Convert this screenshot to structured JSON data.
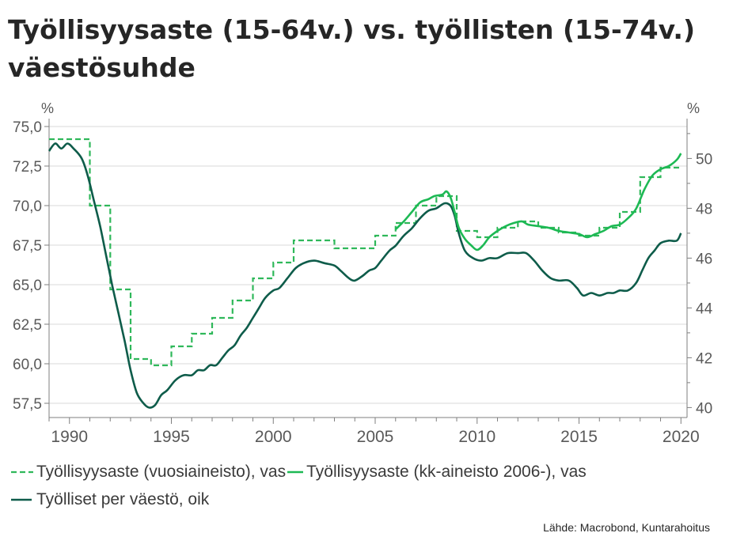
{
  "title": "Työllisyysaste (15-64v.) vs. työllisten (15-74v.) väestösuhde",
  "source": "Lähde: Macrobond, Kuntarahoitus",
  "colors": {
    "dashed": "#2fb85a",
    "green": "#1db954",
    "dark": "#0e5c4a",
    "grid": "#d9d9d9",
    "axis": "#7f7f7f"
  },
  "legend": [
    {
      "label": "Työllisyysaste (vuosiaineisto), vas",
      "style": "dashed"
    },
    {
      "label": "Työllisyysaste (kk-aineisto 2006-), vas",
      "style": "green"
    },
    {
      "label": "Työlliset per väestö, oik",
      "style": "dark"
    }
  ],
  "chart_data": {
    "type": "line",
    "x_range": [
      1989,
      2020.3
    ],
    "x_ticks": [
      1990,
      1995,
      2000,
      2005,
      2010,
      2015,
      2020
    ],
    "y_left": {
      "unit": "%",
      "range": [
        56.6,
        75.5
      ],
      "ticks": [
        57.5,
        60.0,
        62.5,
        65.0,
        67.5,
        70.0,
        72.5,
        75.0
      ],
      "tick_labels": [
        "57,5",
        "60,0",
        "62,5",
        "65,0",
        "67,5",
        "70,0",
        "72,5",
        "75,0"
      ]
    },
    "y_right": {
      "unit": "%",
      "range": [
        39.6,
        51.6
      ],
      "ticks": [
        40,
        42,
        44,
        46,
        48,
        50
      ],
      "tick_labels": [
        "40",
        "42",
        "44",
        "46",
        "48",
        "50"
      ]
    },
    "grid": true,
    "legend_position": "bottom",
    "series": [
      {
        "name": "Työllisyysaste (vuosiaineisto), vas",
        "axis": "left",
        "style": "dashed-step",
        "annual": [
          [
            1989,
            74.2
          ],
          [
            1990,
            74.2
          ],
          [
            1991,
            70.0
          ],
          [
            1992,
            64.7
          ],
          [
            1993,
            60.3
          ],
          [
            1994,
            59.9
          ],
          [
            1995,
            61.1
          ],
          [
            1996,
            61.9
          ],
          [
            1997,
            62.9
          ],
          [
            1998,
            64.0
          ],
          [
            1999,
            65.4
          ],
          [
            2000,
            66.4
          ],
          [
            2001,
            67.8
          ],
          [
            2002,
            67.8
          ],
          [
            2003,
            67.3
          ],
          [
            2004,
            67.3
          ],
          [
            2005,
            68.1
          ],
          [
            2006,
            68.9
          ],
          [
            2007,
            70.0
          ],
          [
            2008,
            70.6
          ],
          [
            2009,
            68.4
          ],
          [
            2010,
            68.0
          ],
          [
            2011,
            68.6
          ],
          [
            2012,
            69.0
          ],
          [
            2013,
            68.6
          ],
          [
            2014,
            68.3
          ],
          [
            2015,
            68.1
          ],
          [
            2016,
            68.6
          ],
          [
            2017,
            69.6
          ],
          [
            2018,
            71.8
          ],
          [
            2019,
            72.4
          ]
        ]
      },
      {
        "name": "Työllisyysaste (kk-aineisto 2006-), vas",
        "axis": "left",
        "style": "solid",
        "points": [
          [
            2006.0,
            68.5
          ],
          [
            2006.4,
            69.0
          ],
          [
            2006.8,
            69.6
          ],
          [
            2007.2,
            70.2
          ],
          [
            2007.6,
            70.4
          ],
          [
            2007.9,
            70.6
          ],
          [
            2008.3,
            70.7
          ],
          [
            2008.5,
            70.9
          ],
          [
            2008.7,
            70.5
          ],
          [
            2008.9,
            69.6
          ],
          [
            2009.1,
            68.6
          ],
          [
            2009.4,
            67.9
          ],
          [
            2009.7,
            67.5
          ],
          [
            2010.0,
            67.2
          ],
          [
            2010.3,
            67.5
          ],
          [
            2010.6,
            68.0
          ],
          [
            2011.0,
            68.4
          ],
          [
            2011.4,
            68.7
          ],
          [
            2011.8,
            68.9
          ],
          [
            2012.2,
            69.0
          ],
          [
            2012.5,
            68.8
          ],
          [
            2013.0,
            68.7
          ],
          [
            2013.5,
            68.6
          ],
          [
            2014.0,
            68.4
          ],
          [
            2014.5,
            68.3
          ],
          [
            2015.0,
            68.2
          ],
          [
            2015.4,
            68.0
          ],
          [
            2015.8,
            68.2
          ],
          [
            2016.2,
            68.4
          ],
          [
            2016.6,
            68.7
          ],
          [
            2017.0,
            68.8
          ],
          [
            2017.4,
            69.2
          ],
          [
            2017.8,
            69.8
          ],
          [
            2018.2,
            71.0
          ],
          [
            2018.6,
            71.9
          ],
          [
            2019.0,
            72.3
          ],
          [
            2019.4,
            72.5
          ],
          [
            2019.8,
            72.9
          ],
          [
            2020.0,
            73.3
          ]
        ]
      },
      {
        "name": "Työlliset per väestö, oik",
        "axis": "right",
        "style": "solid",
        "points": [
          [
            1989.0,
            50.3
          ],
          [
            1989.3,
            50.6
          ],
          [
            1989.6,
            50.4
          ],
          [
            1989.9,
            50.6
          ],
          [
            1990.2,
            50.4
          ],
          [
            1990.6,
            50.0
          ],
          [
            1990.9,
            49.3
          ],
          [
            1991.2,
            48.3
          ],
          [
            1991.5,
            47.3
          ],
          [
            1991.8,
            46.1
          ],
          [
            1992.1,
            44.9
          ],
          [
            1992.4,
            43.8
          ],
          [
            1992.7,
            42.7
          ],
          [
            1993.0,
            41.5
          ],
          [
            1993.3,
            40.6
          ],
          [
            1993.6,
            40.2
          ],
          [
            1993.9,
            40.0
          ],
          [
            1994.2,
            40.1
          ],
          [
            1994.5,
            40.5
          ],
          [
            1994.8,
            40.7
          ],
          [
            1995.2,
            41.1
          ],
          [
            1995.6,
            41.3
          ],
          [
            1996.0,
            41.3
          ],
          [
            1996.3,
            41.5
          ],
          [
            1996.6,
            41.5
          ],
          [
            1996.9,
            41.7
          ],
          [
            1997.2,
            41.7
          ],
          [
            1997.5,
            42.0
          ],
          [
            1997.8,
            42.3
          ],
          [
            1998.1,
            42.5
          ],
          [
            1998.4,
            42.9
          ],
          [
            1998.7,
            43.2
          ],
          [
            1999.0,
            43.6
          ],
          [
            1999.3,
            44.0
          ],
          [
            1999.6,
            44.4
          ],
          [
            2000.0,
            44.7
          ],
          [
            2000.3,
            44.8
          ],
          [
            2000.7,
            45.2
          ],
          [
            2001.1,
            45.6
          ],
          [
            2001.5,
            45.8
          ],
          [
            2002.0,
            45.9
          ],
          [
            2002.5,
            45.8
          ],
          [
            2003.0,
            45.7
          ],
          [
            2003.3,
            45.5
          ],
          [
            2003.7,
            45.2
          ],
          [
            2004.0,
            45.1
          ],
          [
            2004.4,
            45.3
          ],
          [
            2004.7,
            45.5
          ],
          [
            2005.0,
            45.6
          ],
          [
            2005.3,
            45.9
          ],
          [
            2005.7,
            46.3
          ],
          [
            2006.0,
            46.5
          ],
          [
            2006.4,
            46.9
          ],
          [
            2006.8,
            47.2
          ],
          [
            2007.2,
            47.6
          ],
          [
            2007.6,
            47.9
          ],
          [
            2008.0,
            48.0
          ],
          [
            2008.4,
            48.2
          ],
          [
            2008.7,
            48.1
          ],
          [
            2008.9,
            47.7
          ],
          [
            2009.1,
            47.0
          ],
          [
            2009.4,
            46.3
          ],
          [
            2009.8,
            46.0
          ],
          [
            2010.2,
            45.9
          ],
          [
            2010.6,
            46.0
          ],
          [
            2011.0,
            46.0
          ],
          [
            2011.5,
            46.2
          ],
          [
            2012.0,
            46.2
          ],
          [
            2012.4,
            46.2
          ],
          [
            2012.8,
            45.9
          ],
          [
            2013.2,
            45.5
          ],
          [
            2013.6,
            45.2
          ],
          [
            2014.0,
            45.1
          ],
          [
            2014.5,
            45.1
          ],
          [
            2014.9,
            44.8
          ],
          [
            2015.2,
            44.5
          ],
          [
            2015.6,
            44.6
          ],
          [
            2016.0,
            44.5
          ],
          [
            2016.4,
            44.6
          ],
          [
            2016.7,
            44.6
          ],
          [
            2017.0,
            44.7
          ],
          [
            2017.4,
            44.7
          ],
          [
            2017.8,
            45.0
          ],
          [
            2018.1,
            45.5
          ],
          [
            2018.4,
            46.0
          ],
          [
            2018.7,
            46.3
          ],
          [
            2019.0,
            46.6
          ],
          [
            2019.4,
            46.7
          ],
          [
            2019.8,
            46.7
          ],
          [
            2020.0,
            47.0
          ]
        ]
      }
    ]
  }
}
